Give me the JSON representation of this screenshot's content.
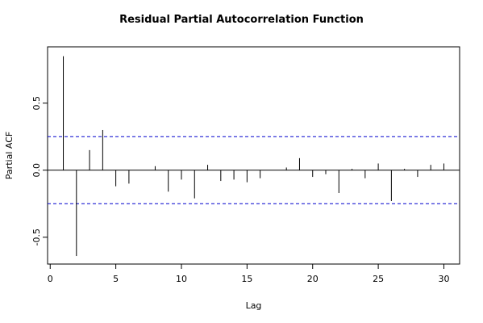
{
  "chart_data": {
    "type": "bar",
    "title": "Residual Partial Autocorrelation Function",
    "xlabel": "Lag",
    "ylabel": "Partial ACF",
    "xlim": [
      -0.2,
      31.2
    ],
    "ylim": [
      -0.7,
      0.92
    ],
    "x_ticks": [
      0,
      5,
      10,
      15,
      20,
      25,
      30
    ],
    "x_tick_labels": [
      "0",
      "5",
      "10",
      "15",
      "20",
      "25",
      "30"
    ],
    "y_ticks": [
      -0.5,
      0.0,
      0.5
    ],
    "y_tick_labels": [
      "-0.5",
      "0.0",
      "0.5"
    ],
    "confidence_limit": 0.25,
    "confidence_color": "#0000cd",
    "grid": false,
    "lags": [
      1,
      2,
      3,
      4,
      5,
      6,
      7,
      8,
      9,
      10,
      11,
      12,
      13,
      14,
      15,
      16,
      17,
      18,
      19,
      20,
      21,
      22,
      23,
      24,
      25,
      26,
      27,
      28,
      29,
      30
    ],
    "values": [
      0.85,
      -0.64,
      0.15,
      0.3,
      -0.12,
      -0.1,
      0.0,
      0.03,
      -0.16,
      -0.07,
      -0.21,
      0.04,
      -0.08,
      -0.07,
      -0.09,
      -0.06,
      0.0,
      0.02,
      0.09,
      -0.05,
      -0.03,
      -0.17,
      0.01,
      -0.06,
      0.05,
      -0.23,
      0.01,
      -0.05,
      0.04,
      0.05
    ]
  }
}
